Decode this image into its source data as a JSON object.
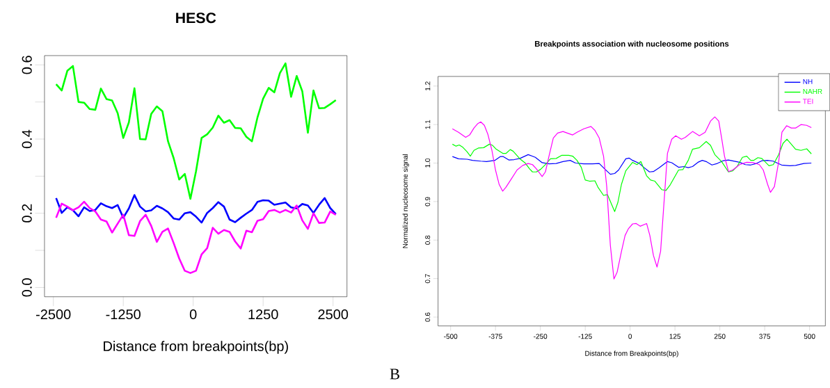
{
  "chart_data": [
    {
      "type": "line",
      "title": "HESC",
      "xlabel": "Distance from breakpoints(bp)",
      "xlim": [
        -2658,
        2749
      ],
      "ylim": [
        -0.025,
        0.625
      ],
      "xticks": [
        -2500,
        -1250,
        0,
        1250,
        2500
      ],
      "yticks": [
        {
          "value": 0,
          "label": "0.0"
        },
        {
          "value": 0.1,
          "label": null
        },
        {
          "value": 0.2,
          "label": "0.2"
        },
        {
          "value": 0.3,
          "label": null
        },
        {
          "value": 0.4,
          "label": "0.4"
        },
        {
          "value": 0.5,
          "label": null
        },
        {
          "value": 0.6,
          "label": "0.6"
        }
      ],
      "grid": false,
      "legend": false,
      "line_style": "solid",
      "x": [
        -2450,
        -2350,
        -2250,
        -2150,
        -2050,
        -1950,
        -1850,
        -1750,
        -1650,
        -1550,
        -1450,
        -1350,
        -1250,
        -1150,
        -1050,
        -950,
        -850,
        -750,
        -650,
        -550,
        -450,
        -350,
        -250,
        -150,
        -50,
        50,
        150,
        250,
        350,
        450,
        550,
        650,
        750,
        850,
        950,
        1050,
        1150,
        1250,
        1350,
        1450,
        1550,
        1650,
        1750,
        1850,
        1950,
        2050,
        2150,
        2250,
        2350,
        2450,
        2550
      ],
      "series": [
        {
          "color": "#00ff00",
          "values": [
            0.548,
            0.531,
            0.584,
            0.597,
            0.5,
            0.498,
            0.481,
            0.479,
            0.536,
            0.508,
            0.504,
            0.47,
            0.403,
            0.445,
            0.537,
            0.4,
            0.399,
            0.468,
            0.488,
            0.475,
            0.394,
            0.349,
            0.291,
            0.306,
            0.239,
            0.313,
            0.403,
            0.413,
            0.431,
            0.463,
            0.444,
            0.451,
            0.43,
            0.429,
            0.406,
            0.394,
            0.459,
            0.509,
            0.538,
            0.526,
            0.578,
            0.604,
            0.514,
            0.57,
            0.529,
            0.417,
            0.531,
            0.483,
            0.484,
            0.494,
            0.505
          ]
        },
        {
          "color": "#0000ff",
          "values": [
            0.241,
            0.201,
            0.216,
            0.208,
            0.192,
            0.216,
            0.206,
            0.209,
            0.227,
            0.219,
            0.214,
            0.222,
            0.188,
            0.213,
            0.249,
            0.218,
            0.205,
            0.208,
            0.22,
            0.213,
            0.203,
            0.186,
            0.183,
            0.2,
            0.203,
            0.191,
            0.175,
            0.201,
            0.214,
            0.23,
            0.218,
            0.183,
            0.176,
            0.188,
            0.199,
            0.209,
            0.231,
            0.235,
            0.234,
            0.223,
            0.226,
            0.229,
            0.216,
            0.213,
            0.225,
            0.221,
            0.201,
            0.223,
            0.241,
            0.214,
            0.198
          ]
        },
        {
          "color": "#ff00ff",
          "values": [
            0.188,
            0.226,
            0.218,
            0.208,
            0.216,
            0.231,
            0.214,
            0.205,
            0.183,
            0.178,
            0.148,
            0.172,
            0.196,
            0.141,
            0.139,
            0.179,
            0.196,
            0.166,
            0.123,
            0.15,
            0.159,
            0.12,
            0.078,
            0.045,
            0.039,
            0.045,
            0.089,
            0.106,
            0.161,
            0.145,
            0.155,
            0.15,
            0.124,
            0.105,
            0.153,
            0.149,
            0.18,
            0.184,
            0.206,
            0.209,
            0.202,
            0.209,
            0.202,
            0.221,
            0.181,
            0.158,
            0.2,
            0.174,
            0.175,
            0.205,
            0.196
          ]
        }
      ]
    },
    {
      "type": "line",
      "title": "Breakpoints association with nucleosome positions",
      "xlabel": "Distance from Breakpoints(bp)",
      "ylabel": "Normalized nucleosome signal",
      "xlim": [
        -535,
        544
      ],
      "ylim": [
        0.577,
        1.225
      ],
      "xticks": [
        -500,
        -375,
        -250,
        -125,
        0,
        125,
        250,
        375,
        500
      ],
      "yticks": [
        0.6,
        0.7,
        0.8,
        0.9,
        {
          "value": 1,
          "label": "1.0"
        },
        1.1,
        1.2
      ],
      "grid": false,
      "legend": "top right",
      "line_style": "solid",
      "annotations": [
        "B"
      ],
      "series": [
        {
          "name": "NH",
          "color": "#0000ff",
          "x": [
            -495,
            -478,
            -454,
            -439,
            -416,
            -400,
            -377,
            -361,
            -354,
            -338,
            -323,
            -307,
            -284,
            -264,
            -245,
            -226,
            -206,
            -187,
            -167,
            -152,
            -129,
            -105,
            -86,
            -71,
            -55,
            -43,
            -32,
            -12,
            -3,
            7,
            26,
            38,
            54,
            65,
            81,
            104,
            116,
            135,
            150,
            162,
            174,
            189,
            201,
            212,
            228,
            243,
            259,
            274,
            305,
            321,
            336,
            352,
            367,
            383,
            399,
            410,
            422,
            445,
            461,
            484,
            505
          ],
          "values": [
            1.017,
            1.011,
            1.01,
            1.007,
            1.005,
            1.004,
            1.007,
            1.017,
            1.017,
            1.008,
            1.009,
            1.012,
            1.022,
            1.015,
            1.001,
            0.998,
            0.999,
            1.004,
            1.007,
            1.0,
            0.998,
            0.998,
            0.999,
            0.985,
            0.971,
            0.973,
            0.982,
            1.011,
            1.013,
            1.007,
            0.999,
            0.989,
            0.977,
            0.978,
            0.988,
            1.004,
            1.001,
            0.989,
            0.991,
            0.988,
            0.991,
            1.002,
            1.007,
            1.004,
            0.995,
            0.999,
            1.006,
            1.008,
            1.002,
            0.996,
            0.995,
            0.999,
            1.006,
            1.007,
            1.005,
            1.0,
            0.995,
            0.993,
            0.994,
            0.999,
            1.0
          ]
        },
        {
          "name": "NAHR",
          "color": "#00ff00",
          "x": [
            -495,
            -485,
            -476,
            -466,
            -454,
            -445,
            -435,
            -423,
            -408,
            -392,
            -383,
            -373,
            -354,
            -346,
            -334,
            -326,
            -307,
            -292,
            -280,
            -272,
            -261,
            -249,
            -233,
            -222,
            -206,
            -191,
            -171,
            -160,
            -148,
            -136,
            -125,
            -113,
            -98,
            -90,
            -74,
            -63,
            -43,
            -34,
            -24,
            -12,
            7,
            19,
            30,
            46,
            57,
            69,
            88,
            100,
            112,
            135,
            147,
            162,
            174,
            193,
            212,
            224,
            236,
            255,
            274,
            286,
            298,
            313,
            325,
            336,
            344,
            356,
            367,
            387,
            399,
            414,
            426,
            437,
            449,
            461,
            476,
            492,
            505
          ],
          "values": [
            1.049,
            1.044,
            1.047,
            1.041,
            1.029,
            1.018,
            1.033,
            1.039,
            1.04,
            1.049,
            1.046,
            1.036,
            1.025,
            1.025,
            1.035,
            1.031,
            1.011,
            1.0,
            0.985,
            0.977,
            0.977,
            0.984,
            0.999,
            1.011,
            1.012,
            1.02,
            1.02,
            1.018,
            1.007,
            0.989,
            0.956,
            0.953,
            0.954,
            0.938,
            0.916,
            0.918,
            0.874,
            0.898,
            0.945,
            0.98,
            1.002,
            0.996,
            1.004,
            0.967,
            0.956,
            0.953,
            0.931,
            0.929,
            0.944,
            0.982,
            0.983,
            1.007,
            1.036,
            1.04,
            1.056,
            1.046,
            1.022,
            1.004,
            0.977,
            0.98,
            0.991,
            1.015,
            1.018,
            1.007,
            1.007,
            1.014,
            1.012,
            0.993,
            0.996,
            1.022,
            1.051,
            1.062,
            1.049,
            1.036,
            1.033,
            1.037,
            1.024
          ]
        },
        {
          "name": "TEI",
          "color": "#ff00ff",
          "x": [
            -495,
            -478,
            -458,
            -447,
            -435,
            -425,
            -416,
            -406,
            -396,
            -385,
            -375,
            -365,
            -355,
            -346,
            -330,
            -315,
            -299,
            -284,
            -272,
            -261,
            -245,
            -236,
            -226,
            -214,
            -202,
            -187,
            -175,
            -160,
            -148,
            -129,
            -109,
            -98,
            -86,
            -74,
            -65,
            -55,
            -45,
            -36,
            -24,
            -14,
            -5,
            7,
            17,
            28,
            46,
            55,
            65,
            75,
            85,
            104,
            116,
            127,
            143,
            154,
            174,
            193,
            209,
            224,
            236,
            247,
            255,
            263,
            274,
            286,
            305,
            325,
            344,
            360,
            371,
            383,
            391,
            402,
            414,
            423,
            436,
            449,
            461,
            476,
            492,
            505
          ],
          "values": [
            1.089,
            1.08,
            1.067,
            1.073,
            1.091,
            1.102,
            1.107,
            1.098,
            1.074,
            1.033,
            0.982,
            0.945,
            0.927,
            0.937,
            0.96,
            0.982,
            0.994,
            0.999,
            0.996,
            0.985,
            0.965,
            0.977,
            1.018,
            1.065,
            1.078,
            1.082,
            1.078,
            1.073,
            1.08,
            1.089,
            1.095,
            1.085,
            1.065,
            1.018,
            0.938,
            0.786,
            0.699,
            0.717,
            0.771,
            0.812,
            0.829,
            0.842,
            0.843,
            0.836,
            0.843,
            0.812,
            0.76,
            0.73,
            0.771,
            1.025,
            1.062,
            1.071,
            1.062,
            1.067,
            1.082,
            1.071,
            1.08,
            1.109,
            1.12,
            1.109,
            1.065,
            1.018,
            0.978,
            0.982,
            0.996,
            1.002,
            1.001,
            0.996,
            0.982,
            0.945,
            0.924,
            0.939,
            1.004,
            1.08,
            1.097,
            1.091,
            1.091,
            1.1,
            1.098,
            1.092
          ]
        }
      ]
    }
  ]
}
